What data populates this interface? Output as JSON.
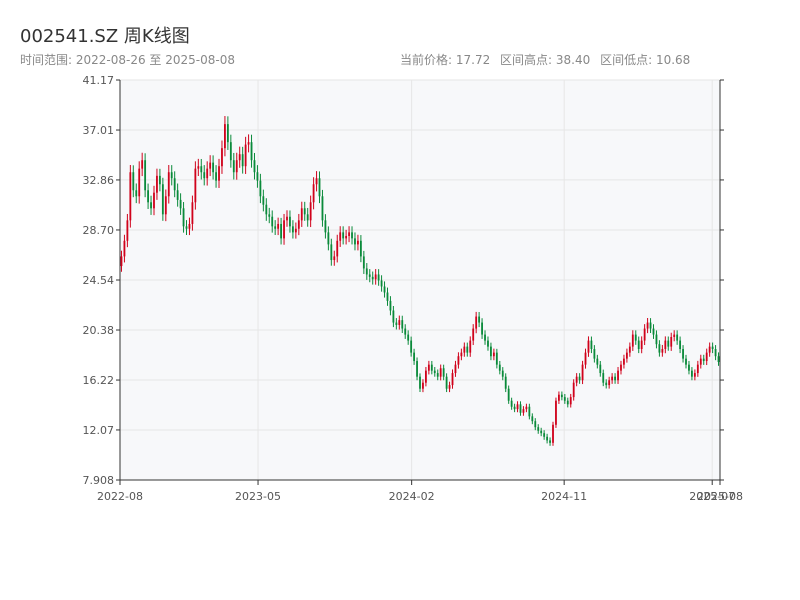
{
  "header": {
    "title": "002541.SZ 周K线图",
    "range_text": "时间范围: 2022-08-26 至 2025-08-08",
    "stat_current": "当前价格: 17.72",
    "stat_high": "区间高点: 38.40",
    "stat_low": "区间低点: 10.68"
  },
  "colors": {
    "up": "#d0021b",
    "down": "#0a8a3a",
    "grid": "#e6e6e6",
    "panel": "#f7f8fa",
    "axis": "#333333"
  },
  "chart_data": {
    "type": "candlestick",
    "ylim": [
      7.908,
      41.17
    ],
    "y_ticks": [
      "7.908",
      "12.07",
      "16.22",
      "20.38",
      "24.54",
      "28.70",
      "32.86",
      "37.01",
      "41.17"
    ],
    "x_tick_labels": [
      "2022-08",
      "2023-05",
      "2024-02",
      "2024-11",
      "2025-07",
      "2025-08"
    ],
    "x_tick_dates": [
      "2022-08-26",
      "2023-05-01",
      "2024-02-01",
      "2024-11-01",
      "2025-07-25",
      "2025-08-08"
    ],
    "start_date": "2022-08-26",
    "end_date": "2025-08-08",
    "weekly_closes": [
      26.5,
      27.8,
      29.5,
      33.5,
      32.0,
      31.5,
      33.8,
      34.5,
      32.0,
      31.0,
      30.5,
      31.8,
      33.2,
      32.5,
      30.0,
      31.5,
      33.5,
      33.0,
      32.0,
      31.2,
      30.5,
      29.0,
      28.8,
      29.2,
      31.0,
      33.8,
      34.0,
      33.5,
      33.0,
      33.8,
      34.3,
      33.5,
      32.8,
      34.0,
      35.5,
      37.5,
      36.0,
      34.5,
      33.5,
      34.5,
      35.0,
      34.0,
      35.8,
      36.0,
      34.5,
      33.5,
      32.8,
      31.5,
      30.8,
      30.0,
      29.8,
      29.0,
      28.8,
      29.2,
      28.0,
      29.5,
      29.8,
      29.0,
      28.5,
      28.8,
      29.5,
      30.5,
      30.0,
      29.5,
      31.0,
      32.5,
      33.0,
      31.5,
      29.5,
      28.5,
      27.5,
      26.2,
      26.5,
      27.8,
      28.5,
      28.0,
      28.2,
      28.5,
      28.0,
      27.5,
      27.8,
      26.5,
      25.5,
      25.0,
      24.8,
      24.6,
      25.0,
      24.5,
      24.0,
      23.5,
      22.8,
      22.0,
      21.0,
      20.8,
      21.2,
      20.5,
      20.0,
      19.5,
      18.5,
      17.8,
      16.5,
      15.5,
      16.0,
      17.0,
      17.5,
      17.0,
      16.8,
      16.5,
      17.2,
      16.5,
      15.5,
      15.8,
      16.8,
      17.5,
      18.2,
      18.5,
      19.0,
      18.5,
      19.5,
      20.5,
      21.5,
      21.0,
      20.0,
      19.5,
      19.0,
      18.2,
      18.5,
      17.5,
      17.0,
      16.5,
      15.5,
      14.5,
      14.0,
      13.8,
      14.2,
      13.5,
      13.8,
      14.0,
      13.2,
      12.8,
      12.3,
      12.0,
      11.8,
      11.5,
      11.2,
      11.0,
      12.5,
      14.5,
      15.0,
      14.8,
      14.5,
      14.2,
      14.8,
      16.0,
      16.5,
      16.2,
      17.5,
      18.5,
      19.5,
      18.8,
      18.0,
      17.5,
      16.8,
      16.0,
      15.8,
      16.2,
      16.5,
      16.2,
      17.0,
      17.5,
      18.0,
      18.5,
      19.0,
      20.0,
      19.5,
      18.8,
      19.5,
      20.5,
      21.0,
      20.5,
      20.0,
      19.2,
      18.5,
      18.8,
      19.5,
      19.0,
      19.8,
      20.0,
      19.5,
      18.8,
      18.0,
      17.5,
      17.0,
      16.5,
      16.8,
      17.5,
      18.0,
      17.8,
      18.5,
      19.0,
      18.8,
      18.2,
      17.72
    ]
  }
}
